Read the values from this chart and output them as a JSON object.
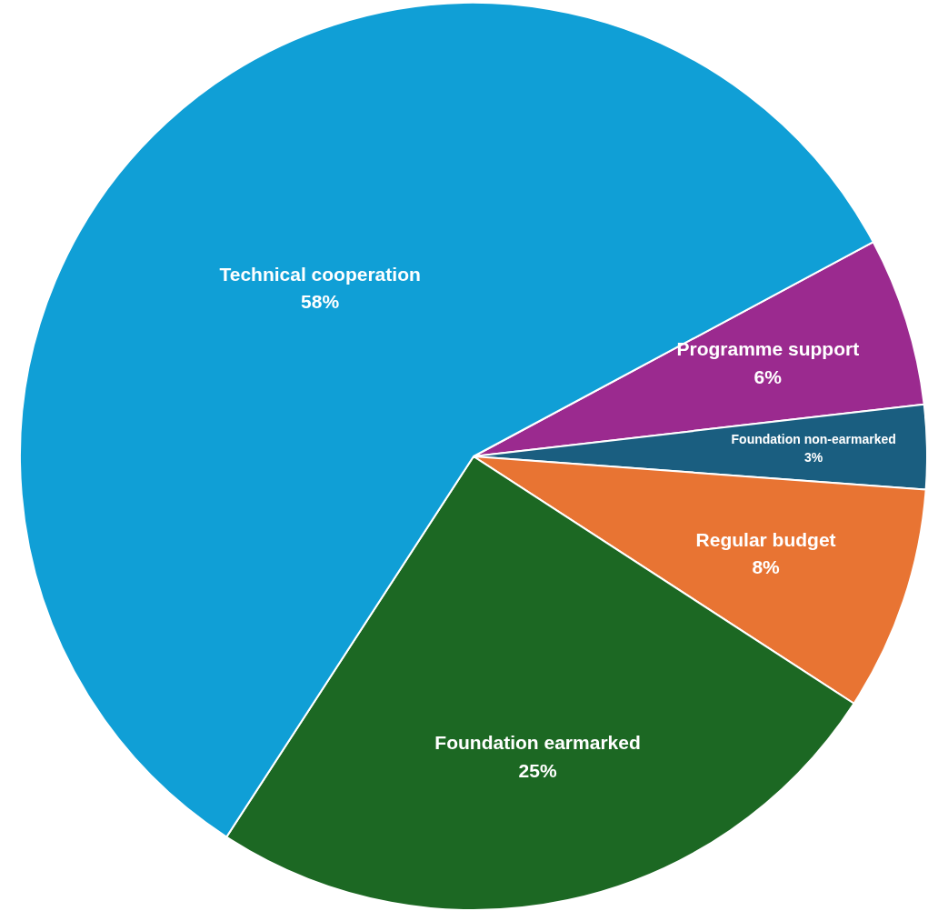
{
  "chart_data": {
    "type": "pie",
    "categories": [
      "Programme support",
      "Foundation non-earmarked",
      "Regular budget",
      "Foundation earmarked",
      "Technical cooperation"
    ],
    "values": [
      6,
      3,
      8,
      25,
      58
    ],
    "value_labels": [
      "6%",
      "3%",
      "8%",
      "25%",
      "58%"
    ],
    "colors": [
      "#9b2a8f",
      "#1a5e80",
      "#e87433",
      "#1c6823",
      "#109fd6"
    ],
    "legend": false
  }
}
